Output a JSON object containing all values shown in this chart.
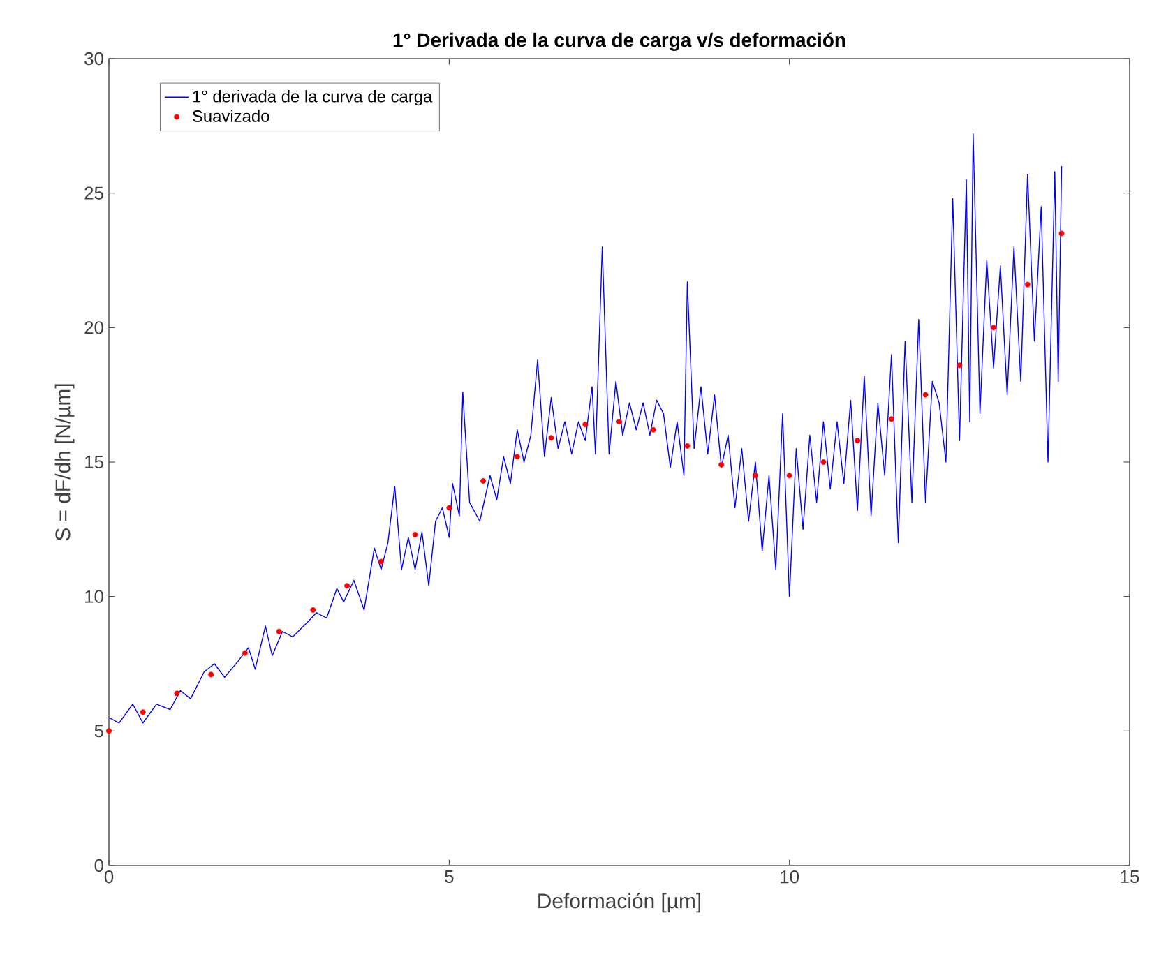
{
  "chart_data": {
    "type": "line",
    "title": "1° Derivada de la curva de carga v/s deformación",
    "xlabel": "Deformación [µm]",
    "ylabel": "S = dF/dh [N/µm]",
    "xlim": [
      0,
      15
    ],
    "ylim": [
      0,
      30
    ],
    "xticks": [
      0,
      5,
      10,
      15
    ],
    "yticks": [
      0,
      5,
      10,
      15,
      20,
      25,
      30
    ],
    "grid": false,
    "legend": "top left",
    "series": [
      {
        "name": "1° derivada de la curva de carga",
        "color": "#0000ff",
        "x": [
          0,
          0.15,
          0.35,
          0.5,
          0.7,
          0.9,
          1.05,
          1.2,
          1.4,
          1.55,
          1.7,
          1.9,
          2.05,
          2.15,
          2.3,
          2.4,
          2.55,
          2.7,
          2.9,
          3.05,
          3.2,
          3.35,
          3.45,
          3.6,
          3.75,
          3.9,
          4.0,
          4.1,
          4.2,
          4.3,
          4.4,
          4.5,
          4.6,
          4.7,
          4.8,
          4.9,
          5.0,
          5.05,
          5.15,
          5.2,
          5.3,
          5.45,
          5.6,
          5.7,
          5.8,
          5.9,
          6.0,
          6.1,
          6.2,
          6.3,
          6.4,
          6.5,
          6.6,
          6.7,
          6.8,
          6.9,
          7.0,
          7.1,
          7.15,
          7.25,
          7.35,
          7.45,
          7.55,
          7.65,
          7.75,
          7.85,
          7.95,
          8.05,
          8.15,
          8.25,
          8.35,
          8.45,
          8.5,
          8.6,
          8.7,
          8.8,
          8.9,
          9.0,
          9.1,
          9.2,
          9.3,
          9.4,
          9.5,
          9.6,
          9.7,
          9.8,
          9.9,
          10.0,
          10.1,
          10.2,
          10.3,
          10.4,
          10.5,
          10.6,
          10.7,
          10.8,
          10.9,
          11.0,
          11.1,
          11.2,
          11.3,
          11.4,
          11.5,
          11.6,
          11.7,
          11.8,
          11.9,
          12.0,
          12.1,
          12.2,
          12.3,
          12.4,
          12.5,
          12.6,
          12.65,
          12.7,
          12.8,
          12.9,
          13.0,
          13.1,
          13.2,
          13.3,
          13.4,
          13.5,
          13.6,
          13.7,
          13.8,
          13.9,
          13.95,
          14.0
        ],
        "values": [
          5.5,
          5.3,
          6.0,
          5.3,
          6.0,
          5.8,
          6.5,
          6.2,
          7.2,
          7.5,
          7.0,
          7.6,
          8.1,
          7.3,
          8.9,
          7.8,
          8.7,
          8.5,
          9.0,
          9.4,
          9.2,
          10.3,
          9.8,
          10.6,
          9.5,
          11.8,
          11.0,
          12.0,
          14.1,
          11.0,
          12.2,
          11.0,
          12.4,
          10.4,
          12.8,
          13.3,
          12.2,
          14.2,
          13.0,
          17.6,
          13.5,
          12.8,
          14.5,
          13.6,
          15.2,
          14.2,
          16.2,
          15.0,
          16.0,
          18.8,
          15.2,
          17.4,
          15.5,
          16.5,
          15.3,
          16.5,
          15.8,
          17.8,
          15.3,
          23.0,
          15.3,
          18.0,
          16.0,
          17.2,
          16.2,
          17.2,
          16.0,
          17.3,
          16.8,
          14.8,
          16.5,
          14.5,
          21.7,
          15.5,
          17.8,
          15.3,
          17.5,
          14.8,
          16.0,
          13.3,
          15.5,
          12.8,
          15.0,
          11.7,
          14.5,
          11.0,
          16.8,
          10.0,
          15.5,
          12.5,
          16.0,
          13.5,
          16.5,
          14.0,
          16.5,
          14.2,
          17.3,
          13.2,
          18.2,
          13.0,
          17.2,
          14.5,
          19.0,
          12.0,
          19.5,
          13.5,
          20.3,
          13.5,
          18.0,
          17.2,
          15.0,
          24.8,
          15.8,
          25.5,
          16.5,
          27.2,
          16.8,
          22.5,
          18.5,
          22.3,
          17.5,
          23.0,
          18.0,
          25.7,
          19.5,
          24.5,
          15.0,
          25.8,
          18.0,
          26.0
        ]
      },
      {
        "name": "Suavizado",
        "type": "scatter",
        "marker": "circle",
        "color": "#ff0000",
        "x": [
          0,
          0.5,
          1,
          1.5,
          2,
          2.5,
          3,
          3.5,
          4,
          4.5,
          5,
          5.5,
          6,
          6.5,
          7,
          7.5,
          8,
          8.5,
          9,
          9.5,
          10,
          10.5,
          11,
          11.5,
          12,
          12.5,
          13,
          13.5,
          14
        ],
        "values": [
          5.0,
          5.7,
          6.4,
          7.1,
          7.9,
          8.7,
          9.5,
          10.4,
          11.3,
          12.3,
          13.3,
          14.3,
          15.2,
          15.9,
          16.4,
          16.5,
          16.2,
          15.6,
          14.9,
          14.5,
          14.5,
          15.0,
          15.8,
          16.6,
          17.5,
          18.6,
          20.0,
          21.6,
          23.5
        ]
      }
    ]
  }
}
